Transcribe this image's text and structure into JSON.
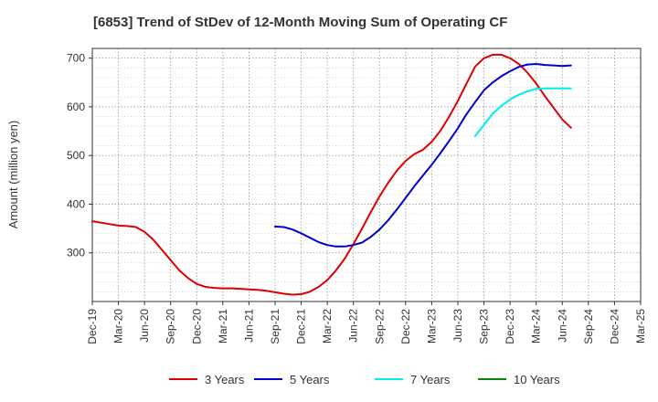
{
  "chart_data": {
    "type": "line",
    "title": "[6853]  Trend of StDev of 12-Month Moving Sum of Operating CF",
    "ylabel": "Amount (million yen)",
    "xlabel": "",
    "ylim": [
      200,
      720
    ],
    "yticks": [
      300,
      400,
      500,
      600,
      700
    ],
    "x_tick_labels": [
      "Dec-19",
      "Mar-20",
      "Jun-20",
      "Sep-20",
      "Dec-20",
      "Mar-21",
      "Jun-21",
      "Sep-21",
      "Dec-21",
      "Mar-22",
      "Jun-22",
      "Sep-22",
      "Dec-22",
      "Mar-23",
      "Jun-23",
      "Sep-23",
      "Dec-23",
      "Mar-24",
      "Jun-24",
      "Sep-24",
      "Dec-24",
      "Mar-25"
    ],
    "grid": true,
    "legend_position": "bottom",
    "series": [
      {
        "name": "3 Years",
        "color": "#dd0000",
        "values": [
          365,
          362,
          359,
          356,
          355,
          353,
          343,
          327,
          306,
          285,
          264,
          248,
          236,
          230,
          228,
          227,
          227,
          226,
          225,
          224,
          222,
          219,
          216,
          214,
          215,
          220,
          230,
          244,
          264,
          288,
          318,
          350,
          384,
          416,
          444,
          469,
          489,
          503,
          512,
          528,
          551,
          580,
          612,
          648,
          683,
          700,
          707,
          707,
          700,
          688,
          670,
          648,
          622,
          598,
          574,
          557
        ]
      },
      {
        "name": "5 Years",
        "color": "#0000cc",
        "values": [
          null,
          null,
          null,
          null,
          null,
          null,
          null,
          null,
          null,
          null,
          null,
          null,
          null,
          null,
          null,
          null,
          null,
          null,
          null,
          null,
          null,
          354,
          353,
          348,
          340,
          331,
          322,
          316,
          313,
          313,
          316,
          321,
          333,
          348,
          367,
          389,
          413,
          437,
          459,
          481,
          505,
          530,
          556,
          585,
          610,
          634,
          650,
          663,
          673,
          682,
          687,
          688,
          686,
          685,
          684,
          685
        ]
      },
      {
        "name": "7 Years",
        "color": "#00eeee",
        "values": [
          null,
          null,
          null,
          null,
          null,
          null,
          null,
          null,
          null,
          null,
          null,
          null,
          null,
          null,
          null,
          null,
          null,
          null,
          null,
          null,
          null,
          null,
          null,
          null,
          null,
          null,
          null,
          null,
          null,
          null,
          null,
          null,
          null,
          null,
          null,
          null,
          null,
          null,
          null,
          null,
          null,
          null,
          null,
          null,
          540,
          563,
          586,
          602,
          615,
          625,
          632,
          637,
          638,
          638,
          638,
          638
        ]
      },
      {
        "name": "10 Years",
        "color": "#008800",
        "values": []
      }
    ]
  }
}
